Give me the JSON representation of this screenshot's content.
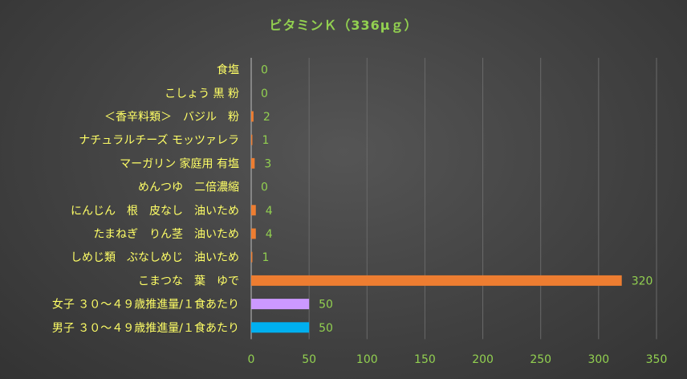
{
  "chart_data": {
    "type": "bar",
    "orientation": "horizontal",
    "title": "ビタミンＫ（336μｇ）",
    "categories": [
      "食塩",
      "こしょう 黒 粉",
      "＜香辛料類＞　バジル　粉",
      "ナチュラルチーズ モッツァレラ",
      "マーガリン 家庭用 有塩",
      "めんつゆ　二倍濃縮",
      "にんじん　根　皮なし　油いため",
      "たまねぎ　りん茎　油いため",
      "しめじ類　ぶなしめじ　油いため",
      "こまつな　葉　ゆで",
      "女子 ３０～４９歳推進量/１食あたり",
      "男子 ３０～４９歳推進量/１食あたり"
    ],
    "values": [
      0,
      0,
      2,
      1,
      3,
      0,
      4,
      4,
      1,
      320,
      50,
      50
    ],
    "bar_colors": [
      "#ed7d31",
      "#ed7d31",
      "#ed7d31",
      "#ed7d31",
      "#ed7d31",
      "#ed7d31",
      "#ed7d31",
      "#ed7d31",
      "#ed7d31",
      "#ed7d31",
      "#cc99ff",
      "#00b0f0"
    ],
    "xlim": [
      0,
      350
    ],
    "xticks": [
      0,
      50,
      100,
      150,
      200,
      250,
      300,
      350
    ],
    "grid": true,
    "legend": "none"
  },
  "colors": {
    "title": "#92d050",
    "category_text": "#ffff66",
    "value_text": "#92d050",
    "gridline": "#6a6a6a"
  }
}
